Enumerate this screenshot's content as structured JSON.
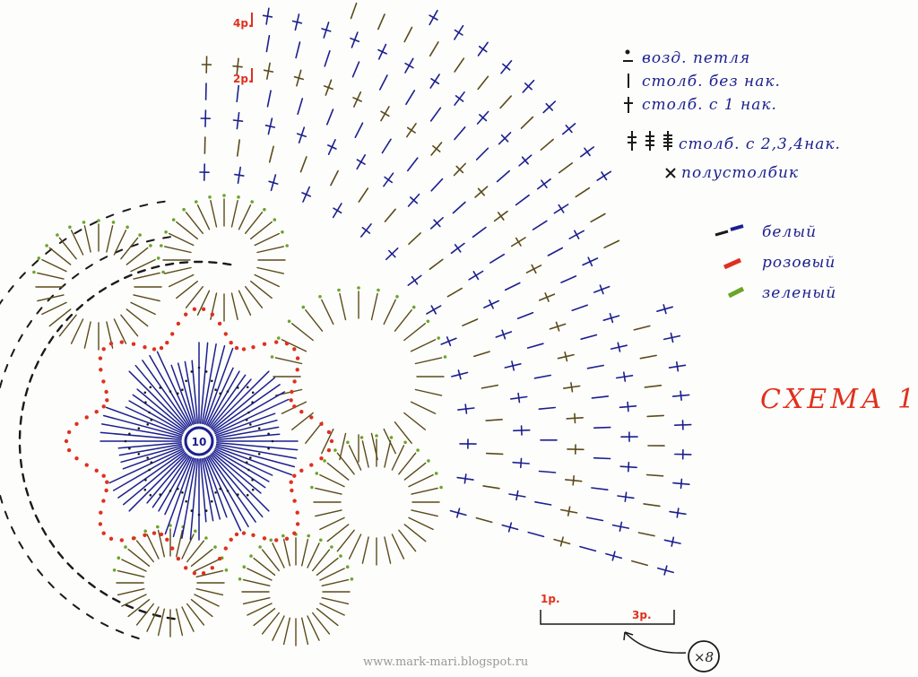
{
  "title": "СХЕМА 1.",
  "watermark": "www.mark-mari.blogspot.ru",
  "legend": [
    {
      "symbol": "chain-stitch",
      "label": "возд. петля"
    },
    {
      "symbol": "single-crochet",
      "label": "столб. без нак."
    },
    {
      "symbol": "double-crochet",
      "label": "столб. с 1 нак."
    },
    {
      "symbol": "multi-crochet",
      "label": "столб. с 2,3,4нак."
    },
    {
      "symbol": "slip-stitch",
      "label": "полустолбик"
    }
  ],
  "color_legend": [
    {
      "label": "белый",
      "color": "#1b1f8f"
    },
    {
      "label": "розовый",
      "color": "#e0301e"
    },
    {
      "label": "зеленый",
      "color": "#6aa52a"
    }
  ],
  "row_labels": {
    "top_4": "4р.",
    "top_2": "2р.",
    "bottom_1": "1р.",
    "bottom_3": "3р."
  },
  "center_count": "10",
  "repeat": "×8",
  "colors": {
    "white_yarn": "#1b1f8f",
    "pink_yarn": "#e0301e",
    "green_yarn": "#6aa52a",
    "dark_yarn": "#5a4a1a",
    "ink": "#1a1a1a"
  }
}
